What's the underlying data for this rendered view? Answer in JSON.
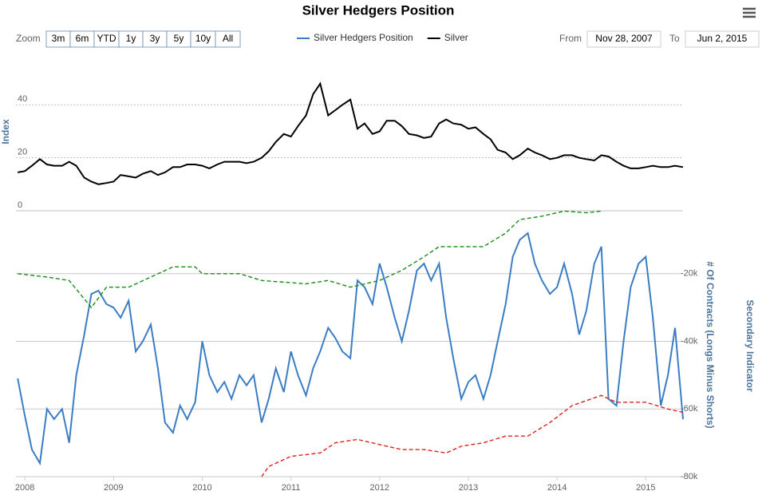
{
  "chart_data": {
    "type": "line",
    "title": "Silver Hedgers Position",
    "ylabel": "Index",
    "y2label": "# Of Contracts (Longs Minus Shorts)",
    "y2title": "Secondary Indicator",
    "xlim": [
      2007.9,
      2015.42
    ],
    "xticks": [
      2008,
      2009,
      2010,
      2011,
      2012,
      2013,
      2014,
      2015
    ],
    "ylim": [
      0,
      60
    ],
    "yticks": [
      0,
      20,
      40
    ],
    "y2lim": [
      -80000,
      -1400
    ],
    "y2ticks": [
      {
        "value": -20000,
        "label": "-20k"
      },
      {
        "value": -40000,
        "label": "-40k"
      },
      {
        "value": -60000,
        "label": "-60k"
      },
      {
        "value": -80000,
        "label": "-80k"
      }
    ],
    "grid": true,
    "x": [
      2007.92,
      2008.0,
      2008.08,
      2008.17,
      2008.25,
      2008.33,
      2008.42,
      2008.5,
      2008.58,
      2008.67,
      2008.75,
      2008.83,
      2008.92,
      2009.0,
      2009.08,
      2009.17,
      2009.25,
      2009.33,
      2009.42,
      2009.5,
      2009.58,
      2009.67,
      2009.75,
      2009.83,
      2009.92,
      2010.0,
      2010.08,
      2010.17,
      2010.25,
      2010.33,
      2010.42,
      2010.5,
      2010.58,
      2010.67,
      2010.75,
      2010.83,
      2010.92,
      2011.0,
      2011.08,
      2011.17,
      2011.25,
      2011.33,
      2011.42,
      2011.5,
      2011.58,
      2011.67,
      2011.75,
      2011.83,
      2011.92,
      2012.0,
      2012.08,
      2012.17,
      2012.25,
      2012.33,
      2012.42,
      2012.5,
      2012.58,
      2012.67,
      2012.75,
      2012.83,
      2012.92,
      2013.0,
      2013.08,
      2013.17,
      2013.25,
      2013.33,
      2013.42,
      2013.5,
      2013.58,
      2013.67,
      2013.75,
      2013.83,
      2013.92,
      2014.0,
      2014.08,
      2014.17,
      2014.25,
      2014.33,
      2014.42,
      2014.5,
      2014.58,
      2014.67,
      2014.75,
      2014.83,
      2014.92,
      2015.0,
      2015.08,
      2015.17,
      2015.25,
      2015.33,
      2015.42
    ],
    "series": [
      {
        "name": "Silver Hedgers Position",
        "color": "#3b7dc4",
        "axis": "y2",
        "dash": false,
        "values": [
          -51000,
          -62000,
          -72000,
          -76000,
          -60000,
          -63000,
          -60000,
          -70000,
          -50000,
          -38000,
          -26000,
          -25000,
          -29000,
          -30000,
          -33000,
          -28000,
          -43000,
          -40000,
          -35000,
          -48000,
          -64000,
          -67000,
          -59000,
          -63000,
          -58000,
          -40000,
          -50000,
          -55000,
          -52000,
          -57000,
          -50000,
          -53000,
          -50000,
          -64000,
          -57000,
          -48000,
          -55000,
          -43000,
          -50000,
          -56000,
          -48000,
          -43000,
          -36000,
          -39000,
          -43000,
          -45000,
          -22000,
          -24000,
          -29000,
          -17000,
          -24000,
          -33000,
          -40000,
          -31000,
          -19000,
          -17000,
          -22000,
          -17000,
          -33000,
          -45000,
          -57000,
          -52000,
          -50000,
          -57000,
          -50000,
          -40000,
          -29000,
          -15000,
          -10000,
          -8000,
          -17000,
          -22000,
          -26000,
          -24000,
          -17000,
          -26000,
          -38000,
          -31000,
          -17000,
          -12000,
          -57000,
          -59000,
          -40000,
          -24000,
          -17000,
          -15000,
          -33000,
          -59000,
          -50000,
          -36000,
          -63000
        ]
      },
      {
        "name": "Silver",
        "color": "#000000",
        "axis": "y",
        "dash": false,
        "values": [
          14.5,
          15,
          17,
          19.5,
          17.5,
          17,
          17,
          18.5,
          17,
          12.5,
          11,
          10,
          10.5,
          11,
          13.5,
          13,
          12.5,
          14,
          15,
          13.5,
          14.5,
          16.5,
          16.5,
          17.5,
          17.5,
          17,
          16,
          17.5,
          18.5,
          18.5,
          18.5,
          18,
          18.5,
          20,
          22.5,
          26,
          29,
          28,
          32,
          36,
          44,
          48,
          36,
          38,
          40,
          42,
          31,
          33,
          29,
          30,
          34,
          34,
          32,
          29,
          28.5,
          27.5,
          28,
          33,
          34.5,
          33,
          32.5,
          31,
          31.5,
          29,
          27,
          23,
          22,
          19.5,
          21,
          23.5,
          22,
          21,
          19.5,
          20,
          21,
          21,
          20,
          19.5,
          19,
          21,
          20.5,
          18.5,
          17,
          16,
          16,
          16.5,
          17,
          16.5,
          16.5,
          17,
          16.5
        ]
      },
      {
        "color": "#1a8a1a",
        "axis": "y2",
        "dash": true,
        "x": [
          2007.92,
          2008.25,
          2008.5,
          2008.75,
          2008.92,
          2009.17,
          2009.42,
          2009.67,
          2009.92,
          2010.0,
          2010.42,
          2010.67,
          2011.17,
          2011.42,
          2011.67,
          2012.0,
          2012.25,
          2012.5,
          2012.67,
          2012.92,
          2013.17,
          2013.42,
          2013.58,
          2013.83,
          2014.08,
          2014.33,
          2014.5
        ],
        "values": [
          -20000,
          -21000,
          -22000,
          -30000,
          -24000,
          -24000,
          -21000,
          -18000,
          -18000,
          -20000,
          -20000,
          -22000,
          -23000,
          -22000,
          -24000,
          -22000,
          -19000,
          -15000,
          -12000,
          -12000,
          -12000,
          -8000,
          -4000,
          -3000,
          -1500,
          -2000,
          -1500
        ]
      },
      {
        "color": "#e0201c",
        "axis": "y2",
        "dash": true,
        "x": [
          2010.67,
          2010.75,
          2011.0,
          2011.33,
          2011.5,
          2011.75,
          2012.08,
          2012.25,
          2012.5,
          2012.75,
          2012.92,
          2013.17,
          2013.42,
          2013.67,
          2013.92,
          2014.17,
          2014.5,
          2014.67,
          2015.0,
          2015.25,
          2015.42
        ],
        "values": [
          -80000,
          -77000,
          -74000,
          -73000,
          -70000,
          -69000,
          -71000,
          -72000,
          -72000,
          -73000,
          -71000,
          -70000,
          -68000,
          -68000,
          -64000,
          -59000,
          -56000,
          -58000,
          -58000,
          -60000,
          -61000
        ]
      }
    ]
  },
  "range_selector": {
    "label": "Zoom",
    "buttons": [
      "3m",
      "6m",
      "YTD",
      "1y",
      "3y",
      "5y",
      "10y",
      "All"
    ]
  },
  "date_range": {
    "from_label": "From",
    "from": "Nov 28, 2007",
    "to_label": "To",
    "to": "Jun 2, 2015"
  }
}
